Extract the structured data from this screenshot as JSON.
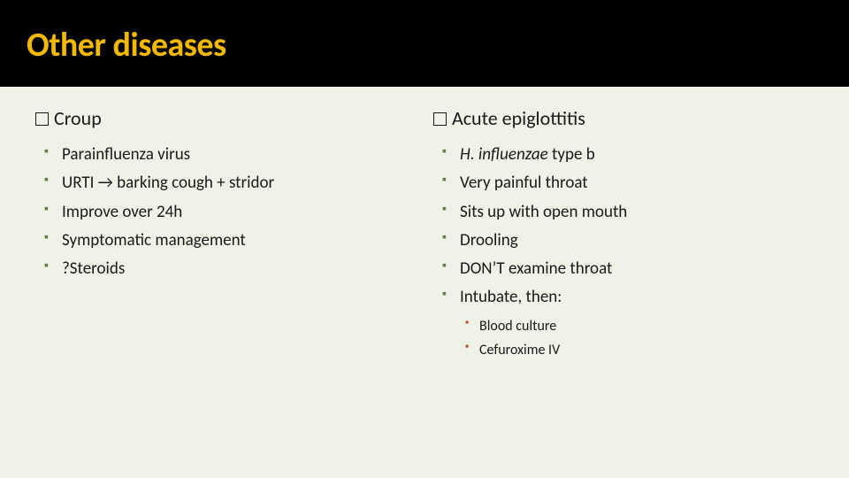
{
  "title": "Other diseases",
  "colors": {
    "background": "#eef2e7",
    "title_bar": "#000000",
    "title_text": "#f2b900",
    "body_text": "#1a1a1a",
    "bullet_l1": "#6a7a4a",
    "bullet_l2": "#b84a3a"
  },
  "typography": {
    "title_fontsize": 38,
    "heading_fontsize": 22,
    "l1_fontsize": 19,
    "l2_fontsize": 16
  },
  "left": {
    "heading": "Croup",
    "items": [
      {
        "text": "Parainfluenza virus"
      },
      {
        "text": "URTI → barking cough + stridor"
      },
      {
        "text": "Improve over 24h"
      },
      {
        "text": "Symptomatic management"
      },
      {
        "text": "?Steroids"
      }
    ]
  },
  "right": {
    "heading": "Acute epiglottitis",
    "items": [
      {
        "prefix_italic": "H. influenzae",
        "suffix": " type b"
      },
      {
        "text": "Very painful throat"
      },
      {
        "text": "Sits up with open mouth"
      },
      {
        "text": "Drooling"
      },
      {
        "text": "DON’T examine throat"
      },
      {
        "text": "Intubate, then:",
        "sub": [
          {
            "text": "Blood culture"
          },
          {
            "text": "Cefuroxime IV"
          }
        ]
      }
    ]
  }
}
